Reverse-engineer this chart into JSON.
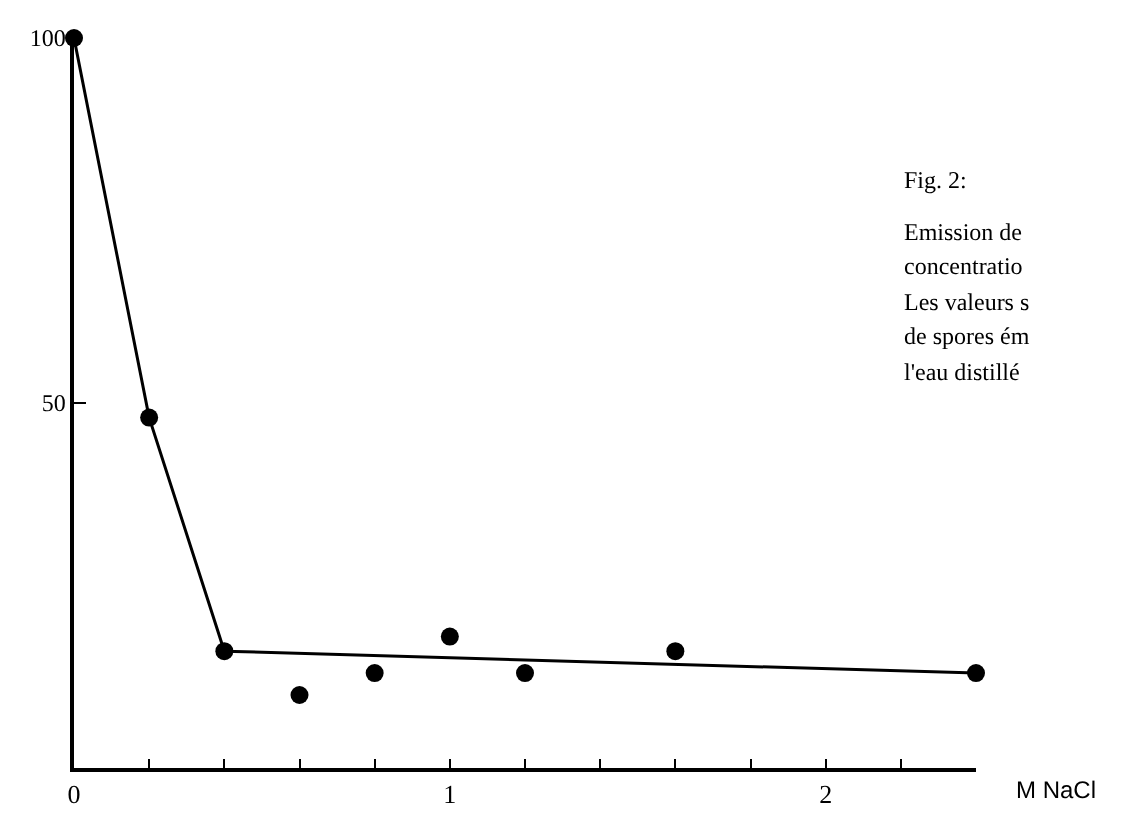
{
  "chart_data": {
    "type": "scatter",
    "xlabel": "M NaCl",
    "annotations": [
      "Fig. 2:",
      "Emission de",
      "concentratio",
      "Les valeurs s",
      "de spores ém",
      "l'eau distillé"
    ],
    "series": [
      {
        "color": "#000000",
        "x": [
          0,
          0.2,
          0.4,
          0.6,
          0.8,
          1.0,
          1.2,
          1.6,
          2.4
        ],
        "values": [
          100,
          48,
          16,
          10,
          13,
          18,
          13,
          16,
          13
        ]
      },
      {
        "type": "line",
        "marker": "none",
        "color": "#000000",
        "x": [
          0,
          0.2,
          0.4,
          2.4
        ],
        "values": [
          100,
          48,
          16,
          13
        ]
      }
    ],
    "xlim": [
      0,
      2.4
    ],
    "ylim": [
      0,
      100
    ],
    "xticks": [
      0,
      {
        "value": 0.2,
        "label": null
      },
      {
        "value": 0.4,
        "label": null
      },
      {
        "value": 0.6,
        "label": null
      },
      {
        "value": 0.8,
        "label": null
      },
      1,
      {
        "value": 1.2,
        "label": null
      },
      {
        "value": 1.4,
        "label": null
      },
      {
        "value": 1.6,
        "label": null
      },
      {
        "value": 1.8,
        "label": null
      },
      2,
      {
        "value": 2.2,
        "label": null
      }
    ],
    "yticks": [
      50,
      100
    ],
    "marker": "circle"
  }
}
